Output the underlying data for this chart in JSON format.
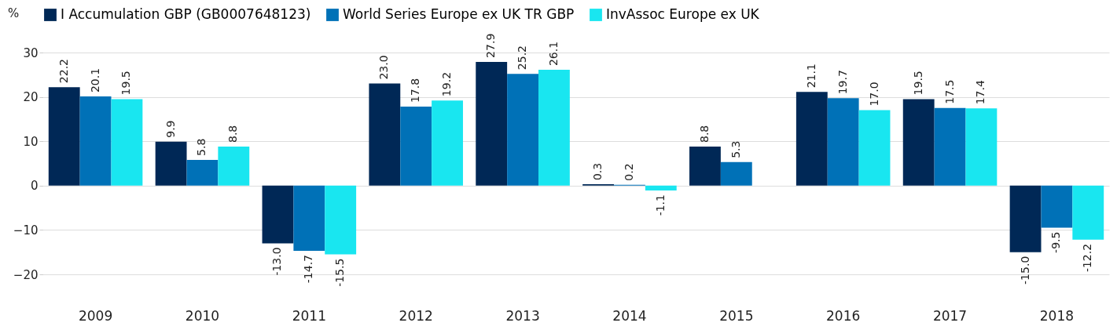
{
  "chart_data": {
    "type": "bar",
    "ylabel": "%",
    "categories": [
      "2009",
      "2010",
      "2011",
      "2012",
      "2013",
      "2014",
      "2015",
      "2016",
      "2017",
      "2018"
    ],
    "series": [
      {
        "name": "I Accumulation GBP (GB0007648123)",
        "color": "#002856",
        "values": [
          22.2,
          9.9,
          -13.0,
          23.0,
          27.9,
          0.3,
          8.8,
          21.1,
          19.5,
          -15.0
        ],
        "value_labels": [
          "22.2",
          "9.9",
          "-13.0",
          "23.0",
          "27.9",
          "0.3",
          "8.8",
          "21.1",
          "19.5",
          "-15.0"
        ]
      },
      {
        "name": "World Series Europe ex UK TR GBP",
        "color": "#0071b7",
        "values": [
          20.1,
          5.8,
          -14.7,
          17.8,
          25.2,
          0.2,
          5.3,
          19.7,
          17.5,
          -9.5
        ],
        "value_labels": [
          "20.1",
          "5.8",
          "-14.7",
          "17.8",
          "25.2",
          "0.2",
          "5.3",
          "19.7",
          "17.5",
          "-9.5"
        ]
      },
      {
        "name": "InvAssoc Europe ex UK",
        "color": "#19e6f0",
        "values": [
          19.5,
          8.8,
          -15.5,
          19.2,
          26.1,
          -1.1,
          null,
          17.0,
          17.4,
          -12.2
        ],
        "value_labels": [
          "19.5",
          "8.8",
          "-15.5",
          "19.2",
          "26.1",
          "-1.1",
          null,
          "17.0",
          "17.4",
          "-12.2"
        ]
      }
    ],
    "ylim": [
      -20,
      30
    ],
    "yticks": [
      -20,
      -10,
      0,
      10,
      20,
      30
    ],
    "grid": "y",
    "legend": "top left"
  }
}
